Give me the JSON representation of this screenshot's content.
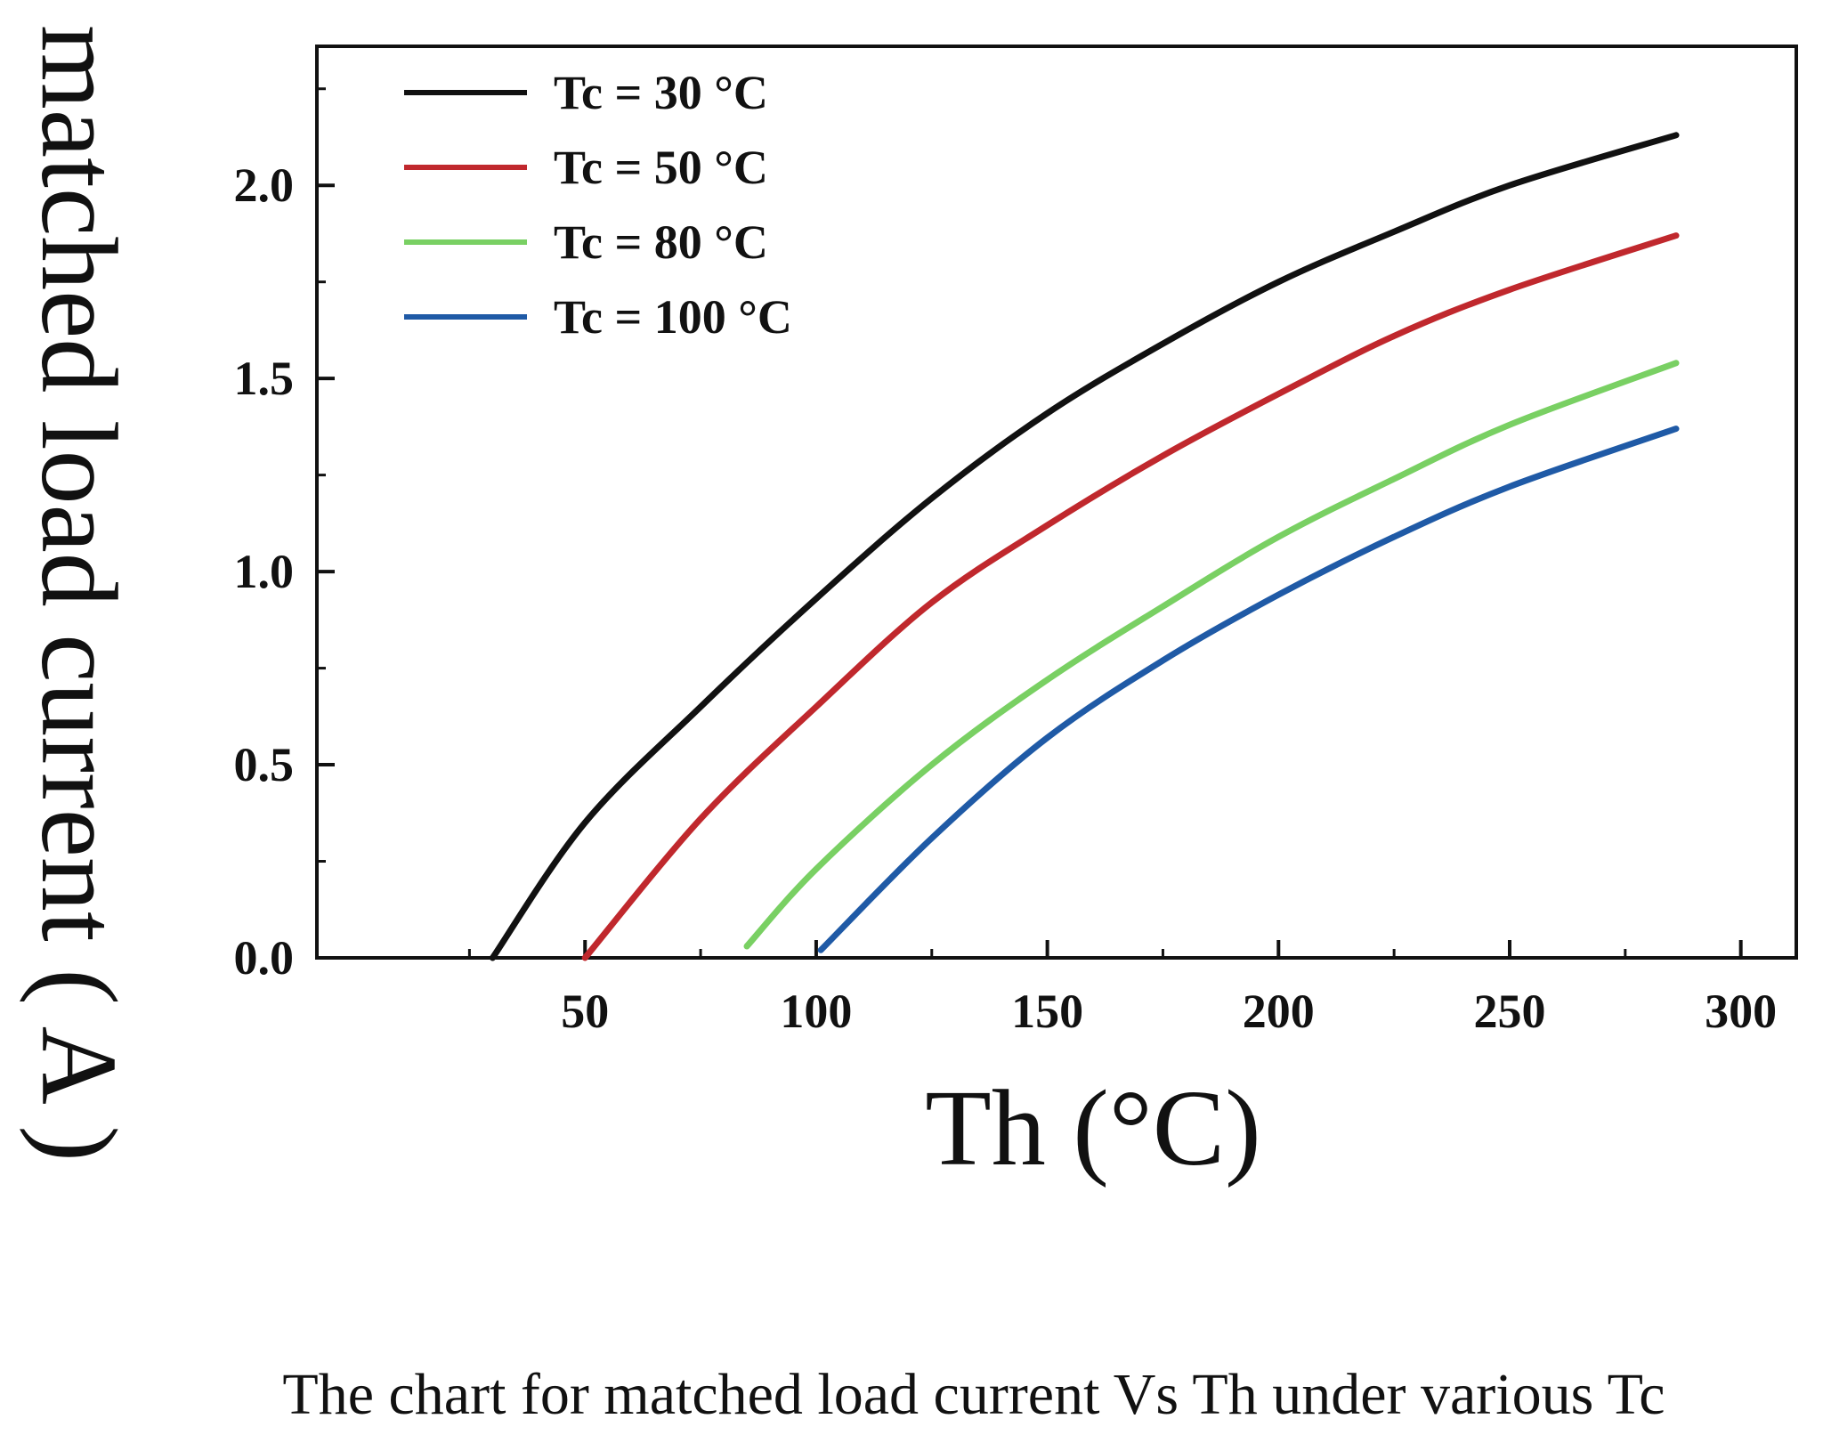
{
  "chart_data": {
    "type": "line",
    "title": "",
    "xlabel": "Th (°C)",
    "ylabel": "matched load current ( A )",
    "caption": "The chart for matched load current Vs Th under various Tc",
    "xlim": [
      -8,
      312
    ],
    "ylim": [
      0,
      2.36
    ],
    "x_ticks": [
      50,
      100,
      150,
      200,
      250,
      300
    ],
    "x_tick_labels": [
      "50",
      "100",
      "150",
      "200",
      "250",
      "300"
    ],
    "y_ticks": [
      0.0,
      0.5,
      1.0,
      1.5,
      2.0
    ],
    "y_tick_labels": [
      "0.0",
      "0.5",
      "1.0",
      "1.5",
      "2.0"
    ],
    "grid": false,
    "legend_position": "top-left",
    "series": [
      {
        "name": "Tc = 30 °C",
        "color": "#111111",
        "x": [
          30,
          50,
          75,
          100,
          125,
          150,
          175,
          200,
          225,
          250,
          286
        ],
        "y": [
          0.0,
          0.35,
          0.65,
          0.93,
          1.19,
          1.41,
          1.59,
          1.75,
          1.88,
          2.0,
          2.13
        ]
      },
      {
        "name": "Tc = 50 °C",
        "color": "#c0282d",
        "x": [
          50,
          75,
          100,
          125,
          150,
          175,
          200,
          225,
          250,
          286
        ],
        "y": [
          0.0,
          0.36,
          0.65,
          0.92,
          1.12,
          1.3,
          1.46,
          1.61,
          1.73,
          1.87
        ]
      },
      {
        "name": "Tc = 80 °C",
        "color": "#79d063",
        "x": [
          85,
          100,
          125,
          150,
          175,
          200,
          225,
          250,
          286
        ],
        "y": [
          0.03,
          0.23,
          0.5,
          0.72,
          0.91,
          1.09,
          1.24,
          1.38,
          1.54
        ]
      },
      {
        "name": "Tc = 100 °C",
        "color": "#1f5aa6",
        "x": [
          101,
          125,
          150,
          175,
          200,
          225,
          250,
          286
        ],
        "y": [
          0.02,
          0.31,
          0.57,
          0.77,
          0.94,
          1.09,
          1.22,
          1.37
        ]
      }
    ]
  }
}
